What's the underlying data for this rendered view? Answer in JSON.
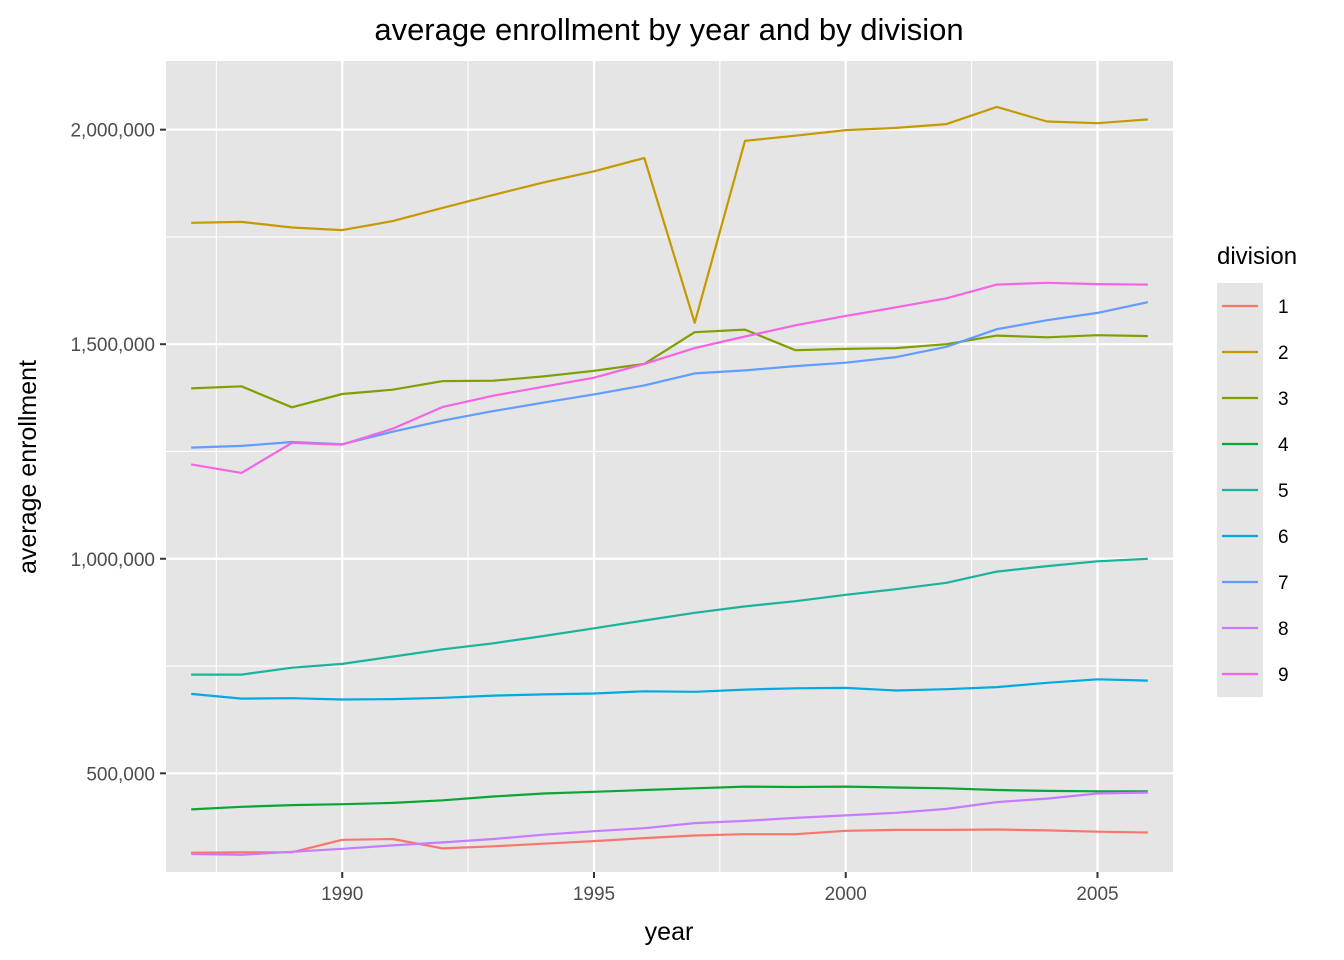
{
  "chart_data": {
    "type": "line",
    "title": "average enrollment by year and by division",
    "xlabel": "year",
    "ylabel": "average enrollment",
    "xlim": [
      1986.5,
      2006.5
    ],
    "ylim": [
      270000,
      2160000
    ],
    "x_ticks": [
      1990,
      1995,
      2000,
      2005
    ],
    "x_tick_labels": [
      "1990",
      "1995",
      "2000",
      "2005"
    ],
    "x_minor_ticks": [
      1987.5,
      1992.5,
      1997.5,
      2002.5
    ],
    "y_ticks": [
      500000,
      1000000,
      1500000,
      2000000
    ],
    "y_tick_labels": [
      "500,000",
      "1,000,000",
      "1,500,000",
      "2,000,000"
    ],
    "y_minor_ticks": [
      250000,
      750000,
      1250000,
      1750000
    ],
    "grid": true,
    "background": "#e5e5e5",
    "legend": {
      "title": "division",
      "position": "right"
    },
    "x": [
      1987,
      1988,
      1989,
      1990,
      1991,
      1992,
      1993,
      1994,
      1995,
      1996,
      1997,
      1998,
      1999,
      2000,
      2001,
      2002,
      2003,
      2004,
      2005,
      2006
    ],
    "series": [
      {
        "name": "1",
        "color": "#F8766D",
        "values": [
          315000,
          316000,
          316000,
          345000,
          347000,
          325000,
          330000,
          336000,
          342000,
          349000,
          355000,
          358000,
          358000,
          366000,
          368000,
          368000,
          369000,
          367000,
          364000,
          362000
        ]
      },
      {
        "name": "2",
        "color": "#C49A00",
        "values": [
          1783000,
          1785000,
          1772000,
          1766000,
          1787000,
          1818000,
          1848000,
          1877000,
          1903000,
          1934000,
          1550000,
          1974000,
          1986000,
          1999000,
          2004000,
          2013000,
          2053000,
          2019000,
          2015000,
          2024000
        ]
      },
      {
        "name": "3",
        "color": "#7FA000",
        "values": [
          1397000,
          1402000,
          1353000,
          1384000,
          1394000,
          1414000,
          1415000,
          1425000,
          1438000,
          1454000,
          1528000,
          1534000,
          1486000,
          1489000,
          1491000,
          1500000,
          1520000,
          1516000,
          1521000,
          1519000
        ]
      },
      {
        "name": "4",
        "color": "#09A635",
        "values": [
          416000,
          422000,
          426000,
          428000,
          431000,
          437000,
          446000,
          453000,
          457000,
          461000,
          465000,
          469000,
          468000,
          469000,
          467000,
          465000,
          461000,
          459000,
          458000,
          458000
        ]
      },
      {
        "name": "5",
        "color": "#19B49A",
        "values": [
          730000,
          730000,
          746000,
          755000,
          772000,
          789000,
          803000,
          820000,
          838000,
          856000,
          874000,
          889000,
          901000,
          916000,
          929000,
          944000,
          970000,
          983000,
          994000,
          1000000
        ]
      },
      {
        "name": "6",
        "color": "#00A9E0",
        "values": [
          685000,
          674000,
          675000,
          672000,
          673000,
          676000,
          681000,
          684000,
          686000,
          691000,
          690000,
          695000,
          698000,
          699000,
          693000,
          696000,
          701000,
          711000,
          719000,
          716000
        ]
      },
      {
        "name": "7",
        "color": "#619CFF",
        "values": [
          1259000,
          1263000,
          1272000,
          1267000,
          1296000,
          1322000,
          1344000,
          1364000,
          1383000,
          1404000,
          1432000,
          1439000,
          1449000,
          1457000,
          1470000,
          1494000,
          1535000,
          1556000,
          1573000,
          1598000
        ]
      },
      {
        "name": "8",
        "color": "#C77CFF",
        "values": [
          312000,
          310000,
          317000,
          324000,
          332000,
          339000,
          347000,
          357000,
          365000,
          372000,
          384000,
          389000,
          396000,
          402000,
          408000,
          417000,
          433000,
          441000,
          453000,
          455000
        ]
      },
      {
        "name": "9",
        "color": "#F564E3",
        "values": [
          1220000,
          1200000,
          1270000,
          1266000,
          1303000,
          1354000,
          1380000,
          1401000,
          1422000,
          1454000,
          1491000,
          1518000,
          1544000,
          1566000,
          1586000,
          1607000,
          1639000,
          1643000,
          1640000,
          1639000
        ]
      }
    ]
  }
}
